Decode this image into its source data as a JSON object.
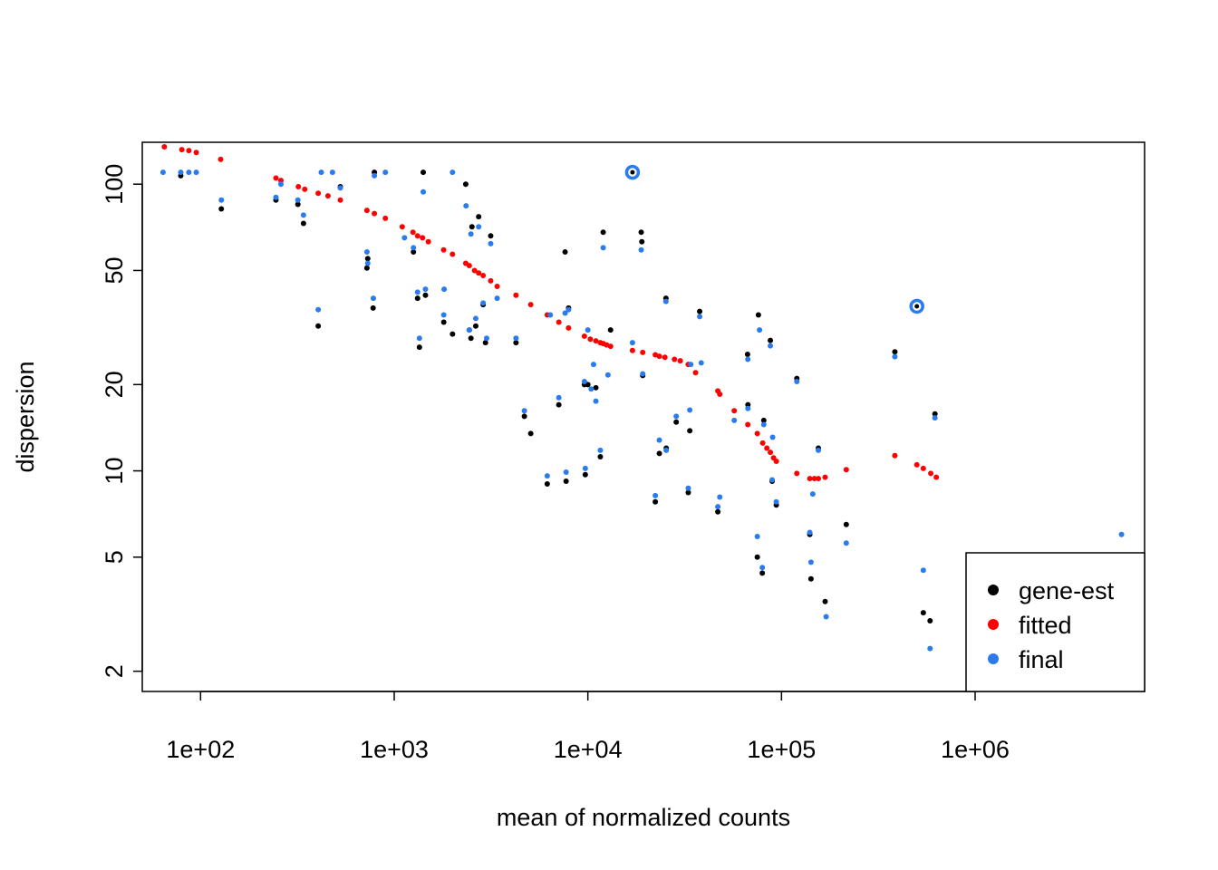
{
  "chart_data": {
    "type": "scatter",
    "title": "",
    "xlabel": "mean of normalized counts",
    "ylabel": "dispersion",
    "x_scale": "log",
    "y_scale": "log",
    "xlim": [
      50,
      7500000
    ],
    "ylim": [
      1.7,
      140
    ],
    "x_ticks": [
      100,
      1000,
      10000,
      100000,
      1000000
    ],
    "x_tick_labels": [
      "1e+02",
      "1e+03",
      "1e+04",
      "1e+05",
      "1e+06"
    ],
    "y_ticks": [
      2,
      5,
      10,
      20,
      50,
      100
    ],
    "y_tick_labels": [
      "2",
      "5",
      "10",
      "20",
      "50",
      "100"
    ],
    "legend_position": "bottom-right",
    "series": [
      {
        "name": "gene-est",
        "color": "#000000",
        "points": [
          [
            79,
            107
          ],
          [
            128,
            82
          ],
          [
            245,
            88
          ],
          [
            318,
            85
          ],
          [
            340,
            73
          ],
          [
            405,
            32
          ],
          [
            527,
            98
          ],
          [
            723,
            51
          ],
          [
            730,
            55
          ],
          [
            778,
            37
          ],
          [
            790,
            110
          ],
          [
            1257,
            58
          ],
          [
            1320,
            40
          ],
          [
            1350,
            27
          ],
          [
            1412,
            110
          ],
          [
            1450,
            41
          ],
          [
            1802,
            33
          ],
          [
            2000,
            30
          ],
          [
            2341,
            100
          ],
          [
            2442,
            31
          ],
          [
            2490,
            29
          ],
          [
            2520,
            71
          ],
          [
            2637,
            32
          ],
          [
            2730,
            77
          ],
          [
            2880,
            38
          ],
          [
            2960,
            28
          ],
          [
            3150,
            66
          ],
          [
            4255,
            28
          ],
          [
            4700,
            15.5
          ],
          [
            5070,
            13.5
          ],
          [
            6169,
            9
          ],
          [
            7080,
            17
          ],
          [
            7630,
            58
          ],
          [
            7720,
            9.2
          ],
          [
            7950,
            37
          ],
          [
            9600,
            20
          ],
          [
            9700,
            9.7
          ],
          [
            10000,
            20
          ],
          [
            11000,
            19.5
          ],
          [
            11600,
            11.2
          ],
          [
            12000,
            68
          ],
          [
            13100,
            31
          ],
          [
            18860,
            68
          ],
          [
            19000,
            63
          ],
          [
            19200,
            21.5
          ],
          [
            22300,
            7.8
          ],
          [
            23400,
            11.5
          ],
          [
            25300,
            40
          ],
          [
            25400,
            12
          ],
          [
            28600,
            14.8
          ],
          [
            33000,
            8.4
          ],
          [
            33600,
            13.8
          ],
          [
            37800,
            36
          ],
          [
            46900,
            7.2
          ],
          [
            66800,
            25.5
          ],
          [
            67100,
            17
          ],
          [
            75000,
            5
          ],
          [
            76000,
            35
          ],
          [
            79600,
            4.4
          ],
          [
            81000,
            15
          ],
          [
            87600,
            28.5
          ],
          [
            89500,
            9.2
          ],
          [
            94000,
            7.6
          ],
          [
            120000,
            21
          ],
          [
            140000,
            6
          ],
          [
            142000,
            4.2
          ],
          [
            155000,
            12
          ],
          [
            168000,
            3.5
          ],
          [
            216000,
            6.5
          ],
          [
            385000,
            26
          ],
          [
            540000,
            3.2
          ],
          [
            585000,
            3
          ],
          [
            620000,
            15.8
          ]
        ]
      },
      {
        "name": "fitted",
        "color": "#ff0000",
        "points": [
          [
            65,
            135
          ],
          [
            80,
            132
          ],
          [
            87,
            131
          ],
          [
            95,
            129
          ],
          [
            127,
            122
          ],
          [
            245,
            105
          ],
          [
            260,
            103
          ],
          [
            320,
            98
          ],
          [
            345,
            96
          ],
          [
            405,
            93
          ],
          [
            455,
            91
          ],
          [
            527,
            88
          ],
          [
            723,
            81
          ],
          [
            790,
            79
          ],
          [
            900,
            76
          ],
          [
            1100,
            71
          ],
          [
            1250,
            68
          ],
          [
            1320,
            66
          ],
          [
            1400,
            65
          ],
          [
            1500,
            63
          ],
          [
            1800,
            59
          ],
          [
            2000,
            57
          ],
          [
            2341,
            53
          ],
          [
            2442,
            52
          ],
          [
            2600,
            50
          ],
          [
            2730,
            49
          ],
          [
            2880,
            48
          ],
          [
            3150,
            46
          ],
          [
            3400,
            44
          ],
          [
            4255,
            41
          ],
          [
            5070,
            38
          ],
          [
            6169,
            35
          ],
          [
            7080,
            33
          ],
          [
            7950,
            31.5
          ],
          [
            9600,
            29.5
          ],
          [
            10300,
            28.8
          ],
          [
            11000,
            28.4
          ],
          [
            11600,
            28
          ],
          [
            12000,
            27.8
          ],
          [
            12500,
            27.5
          ],
          [
            13100,
            27.2
          ],
          [
            17000,
            26.3
          ],
          [
            19200,
            25.9
          ],
          [
            22300,
            25.4
          ],
          [
            23400,
            25.1
          ],
          [
            25000,
            24.9
          ],
          [
            28000,
            24.5
          ],
          [
            30000,
            24.2
          ],
          [
            33000,
            23.5
          ],
          [
            36000,
            22
          ],
          [
            46900,
            19
          ],
          [
            48000,
            18.5
          ],
          [
            57000,
            16.2
          ],
          [
            67000,
            14.5
          ],
          [
            75000,
            13.5
          ],
          [
            80000,
            12.5
          ],
          [
            84000,
            12
          ],
          [
            87600,
            11.6
          ],
          [
            91000,
            11.1
          ],
          [
            94000,
            10.8
          ],
          [
            120000,
            9.8
          ],
          [
            140000,
            9.4
          ],
          [
            148000,
            9.4
          ],
          [
            155000,
            9.4
          ],
          [
            168000,
            9.5
          ],
          [
            216000,
            10.1
          ],
          [
            385000,
            11.3
          ],
          [
            500000,
            10.5
          ],
          [
            540000,
            10.2
          ],
          [
            590000,
            9.8
          ],
          [
            630000,
            9.5
          ]
        ]
      },
      {
        "name": "final",
        "color": "#2a7bed",
        "points": [
          [
            64,
            110
          ],
          [
            79,
            110
          ],
          [
            87,
            110
          ],
          [
            95,
            110
          ],
          [
            128,
            88
          ],
          [
            245,
            90
          ],
          [
            260,
            100
          ],
          [
            318,
            88
          ],
          [
            340,
            78
          ],
          [
            405,
            36.5
          ],
          [
            420,
            110
          ],
          [
            480,
            110
          ],
          [
            527,
            97
          ],
          [
            723,
            58
          ],
          [
            730,
            53
          ],
          [
            780,
            40
          ],
          [
            790,
            107
          ],
          [
            900,
            110
          ],
          [
            1130,
            65
          ],
          [
            1257,
            60
          ],
          [
            1320,
            42
          ],
          [
            1350,
            29
          ],
          [
            1412,
            94
          ],
          [
            1450,
            43
          ],
          [
            1802,
            35
          ],
          [
            1810,
            43
          ],
          [
            2000,
            110
          ],
          [
            2350,
            84
          ],
          [
            2442,
            31
          ],
          [
            2490,
            67
          ],
          [
            2637,
            34
          ],
          [
            2730,
            71
          ],
          [
            2880,
            38.5
          ],
          [
            3000,
            29
          ],
          [
            3150,
            62
          ],
          [
            3400,
            40
          ],
          [
            4255,
            29
          ],
          [
            4700,
            16.2
          ],
          [
            6169,
            9.6
          ],
          [
            6400,
            35
          ],
          [
            7080,
            18
          ],
          [
            7630,
            35.5
          ],
          [
            7720,
            9.9
          ],
          [
            7950,
            36.5
          ],
          [
            9600,
            20.5
          ],
          [
            9700,
            10.2
          ],
          [
            10000,
            31
          ],
          [
            10400,
            19.3
          ],
          [
            10700,
            23.5
          ],
          [
            11000,
            17.5
          ],
          [
            11600,
            11.8
          ],
          [
            12000,
            60
          ],
          [
            12700,
            21.6
          ],
          [
            17000,
            28
          ],
          [
            18860,
            59
          ],
          [
            19200,
            21.8
          ],
          [
            22300,
            8.2
          ],
          [
            23400,
            12.8
          ],
          [
            25300,
            39
          ],
          [
            25400,
            11.8
          ],
          [
            28600,
            15.5
          ],
          [
            33000,
            8.7
          ],
          [
            33600,
            16.3
          ],
          [
            34000,
            23.5
          ],
          [
            37800,
            34.5
          ],
          [
            38500,
            23.8
          ],
          [
            46900,
            7.5
          ],
          [
            48000,
            8.1
          ],
          [
            57000,
            15
          ],
          [
            67000,
            24.5
          ],
          [
            67100,
            16.5
          ],
          [
            75000,
            5.9
          ],
          [
            77000,
            31
          ],
          [
            79600,
            4.6
          ],
          [
            81000,
            14.5
          ],
          [
            87600,
            27.3
          ],
          [
            89500,
            9.3
          ],
          [
            90000,
            13.1
          ],
          [
            94000,
            7.8
          ],
          [
            120000,
            20.5
          ],
          [
            140000,
            6.1
          ],
          [
            142000,
            4.8
          ],
          [
            145000,
            8.3
          ],
          [
            155000,
            11.8
          ],
          [
            170000,
            3.1
          ],
          [
            216000,
            5.6
          ],
          [
            385000,
            25
          ],
          [
            540000,
            4.5
          ],
          [
            585000,
            2.4
          ],
          [
            620000,
            15.3
          ],
          [
            5700000,
            6
          ]
        ]
      }
    ],
    "highlighted_points": [
      [
        17000,
        110
      ],
      [
        500000,
        37.5
      ]
    ]
  }
}
